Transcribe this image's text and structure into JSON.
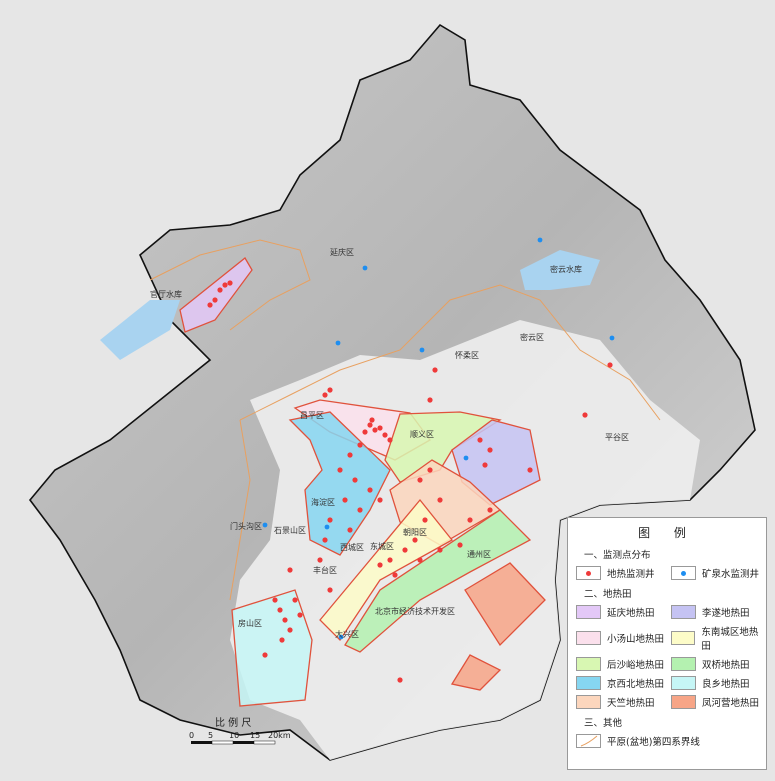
{
  "legend": {
    "title": "图  例",
    "section1": "一、监测点分布",
    "geothermal_well": "地热监测井",
    "mineral_well": "矿泉水监测井",
    "section2": "二、地热田",
    "fields": [
      {
        "label": "延庆地热田",
        "color": "#e3c8f7"
      },
      {
        "label": "李遂地热田",
        "color": "#c5c3f3"
      },
      {
        "label": "小汤山地热田",
        "color": "#fbe0ec"
      },
      {
        "label": "东南城区地热田",
        "color": "#fdfcc8"
      },
      {
        "label": "后沙峪地热田",
        "color": "#d8f7b2"
      },
      {
        "label": "双桥地热田",
        "color": "#b4f1b0"
      },
      {
        "label": "京西北地热田",
        "color": "#86d6f1"
      },
      {
        "label": "良乡地热田",
        "color": "#c6f6f6"
      },
      {
        "label": "天竺地热田",
        "color": "#fcd6bd"
      },
      {
        "label": "凤河营地热田",
        "color": "#f7a587"
      }
    ],
    "section3": "三、其他",
    "boundary_line": "平原(盆地)第四系界线"
  },
  "colors": {
    "geothermal_well": "#ef3a3a",
    "mineral_well": "#1e8ef0",
    "field_outline": "#e0523c",
    "quaternary_line": "#e8a060"
  },
  "scale": {
    "title": "比 例 尺",
    "ticks": [
      "0",
      "5",
      "10",
      "15",
      "20km"
    ]
  },
  "labels": {
    "yanqing": "延庆区",
    "guanting": "官厅水库",
    "miyun_res": "密云水库",
    "huairou": "怀柔区",
    "miyun": "密云区",
    "pinggu": "平谷区",
    "changping": "昌平区",
    "shunyi": "顺义区",
    "haidian": "海淀区",
    "mentougou": "门头沟区",
    "shijingshan": "石景山区",
    "xicheng": "西城区",
    "dongcheng": "东城区",
    "chaoyang": "朝阳区",
    "fengtai": "丰台区",
    "tongzhou": "通州区",
    "etdz": "北京市经济技术开发区",
    "daxing": "大兴区",
    "fangshan": "房山区"
  }
}
